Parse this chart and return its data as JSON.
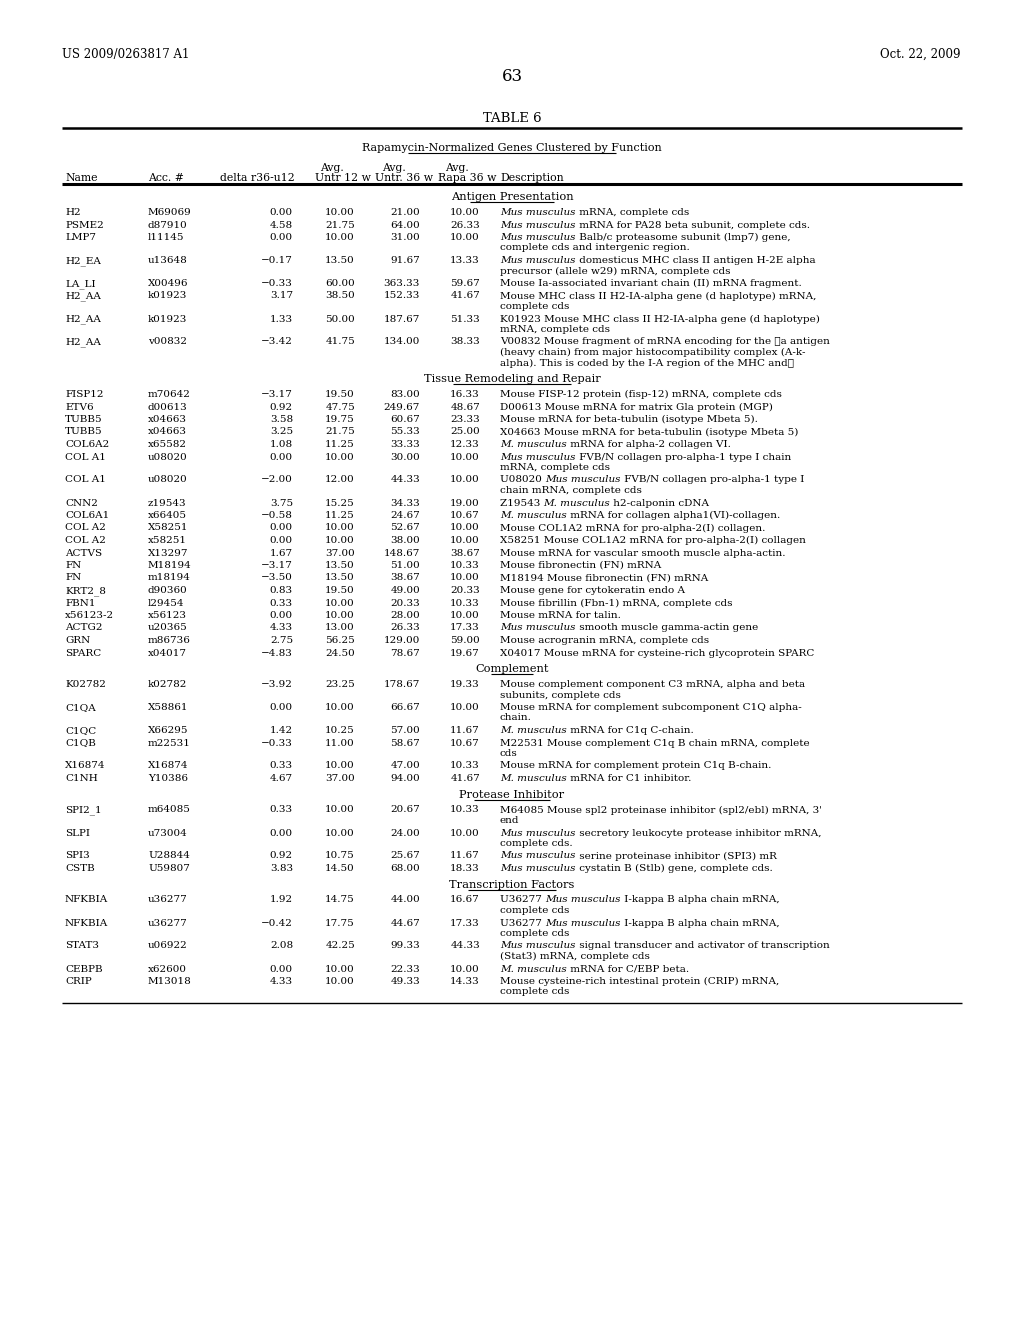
{
  "page_left": "US 2009/0263817 A1",
  "page_right": "Oct. 22, 2009",
  "page_number": "63",
  "table_title": "TABLE 6",
  "table_subtitle": "Rapamycin-Normalized Genes Clustered by Function",
  "sections": [
    {
      "name": "Antigen Presentation",
      "rows": [
        [
          "H2",
          "M69069",
          "0.00",
          "10.00",
          "21.00",
          "10.00",
          [
            [
              "italic",
              "Mus musculus"
            ],
            [
              "normal",
              " mRNA, complete cds"
            ]
          ]
        ],
        [
          "PSME2",
          "d87910",
          "4.58",
          "21.75",
          "64.00",
          "26.33",
          [
            [
              "italic",
              "Mus musculus"
            ],
            [
              "normal",
              " mRNA for PA28 beta subunit, complete cds."
            ]
          ]
        ],
        [
          "LMP7",
          "l11145",
          "0.00",
          "10.00",
          "31.00",
          "10.00",
          [
            [
              "italic",
              "Mus musculus"
            ],
            [
              "normal",
              " Balb/c proteasome subunit (lmp7) gene,\ncomplete cds and intergenic region."
            ]
          ]
        ],
        [
          "H2_EA",
          "u13648",
          "−0.17",
          "13.50",
          "91.67",
          "13.33",
          [
            [
              "italic",
              "Mus musculus"
            ],
            [
              "normal",
              " domesticus MHC class II antigen H-2E alpha\nprecursor (allele w29) mRNA, complete cds"
            ]
          ]
        ],
        [
          "LA_LI",
          "X00496",
          "−0.33",
          "60.00",
          "363.33",
          "59.67",
          [
            [
              "normal",
              "Mouse Ia-associated invariant chain (II) mRNA fragment."
            ]
          ]
        ],
        [
          "H2_AA",
          "k01923",
          "3.17",
          "38.50",
          "152.33",
          "41.67",
          [
            [
              "normal",
              "Mouse MHC class II H2-IA-alpha gene (d haplotype) mRNA,\ncomplete cds"
            ]
          ]
        ],
        [
          "H2_AA",
          "k01923",
          "1.33",
          "50.00",
          "187.67",
          "51.33",
          [
            [
              "normal",
              "K01923 Mouse MHC class II H2-IA-alpha gene (d haplotype)\nmRNA, complete cds"
            ]
          ]
        ],
        [
          "H2_AA",
          "v00832",
          "−3.42",
          "41.75",
          "134.00",
          "38.33",
          [
            [
              "normal",
              "V00832 Mouse fragment of mRNA encoding for the Ⓢa antigen\n(heavy chain) from major histocompatibility complex (A-k-\nalpha). This is coded by the I-A region of the MHC and②"
            ]
          ]
        ]
      ]
    },
    {
      "name": "Tissue Remodeling and Repair",
      "rows": [
        [
          "FISP12",
          "m70642",
          "−3.17",
          "19.50",
          "83.00",
          "16.33",
          [
            [
              "normal",
              "Mouse FISP-12 protein (fisp-12) mRNA, complete cds"
            ]
          ]
        ],
        [
          "ETV6",
          "d00613",
          "0.92",
          "47.75",
          "249.67",
          "48.67",
          [
            [
              "normal",
              "D00613 Mouse mRNA for matrix Gla protein (MGP)"
            ]
          ]
        ],
        [
          "TUBB5",
          "x04663",
          "3.58",
          "19.75",
          "60.67",
          "23.33",
          [
            [
              "normal",
              "Mouse mRNA for beta-tubulin (isotype Mbeta 5)."
            ]
          ]
        ],
        [
          "TUBB5",
          "x04663",
          "3.25",
          "21.75",
          "55.33",
          "25.00",
          [
            [
              "normal",
              "X04663 Mouse mRNA for beta-tubulin (isotype Mbeta 5)"
            ]
          ]
        ],
        [
          "COL6A2",
          "x65582",
          "1.08",
          "11.25",
          "33.33",
          "12.33",
          [
            [
              "italic",
              "M. musculus"
            ],
            [
              "normal",
              " mRNA for alpha-2 collagen VI."
            ]
          ]
        ],
        [
          "COL A1",
          "u08020",
          "0.00",
          "10.00",
          "30.00",
          "10.00",
          [
            [
              "italic",
              "Mus musculus"
            ],
            [
              "normal",
              " FVB/N collagen pro-alpha-1 type I chain\nmRNA, complete cds"
            ]
          ]
        ],
        [
          "COL A1",
          "u08020",
          "−2.00",
          "12.00",
          "44.33",
          "10.00",
          [
            [
              "normal",
              "U08020 "
            ],
            [
              "italic",
              "Mus musculus"
            ],
            [
              "normal",
              " FVB/N collagen pro-alpha-1 type I\nchain mRNA, complete cds"
            ]
          ]
        ],
        [
          "CNN2",
          "z19543",
          "3.75",
          "15.25",
          "34.33",
          "19.00",
          [
            [
              "normal",
              "Z19543 "
            ],
            [
              "italic",
              "M. musculus"
            ],
            [
              "normal",
              " h2-calponin cDNA"
            ]
          ]
        ],
        [
          "COL6A1",
          "x66405",
          "−0.58",
          "11.25",
          "24.67",
          "10.67",
          [
            [
              "italic",
              "M. musculus"
            ],
            [
              "normal",
              " mRNA for collagen alpha1(VI)-collagen."
            ]
          ]
        ],
        [
          "COL A2",
          "X58251",
          "0.00",
          "10.00",
          "52.67",
          "10.00",
          [
            [
              "normal",
              "Mouse COL1A2 mRNA for pro-alpha-2(I) collagen."
            ]
          ]
        ],
        [
          "COL A2",
          "x58251",
          "0.00",
          "10.00",
          "38.00",
          "10.00",
          [
            [
              "normal",
              "X58251 Mouse COL1A2 mRNA for pro-alpha-2(I) collagen"
            ]
          ]
        ],
        [
          "ACTVS",
          "X13297",
          "1.67",
          "37.00",
          "148.67",
          "38.67",
          [
            [
              "normal",
              "Mouse mRNA for vascular smooth muscle alpha-actin."
            ]
          ]
        ],
        [
          "FN",
          "M18194",
          "−3.17",
          "13.50",
          "51.00",
          "10.33",
          [
            [
              "normal",
              "Mouse fibronectin (FN) mRNA"
            ]
          ]
        ],
        [
          "FN",
          "m18194",
          "−3.50",
          "13.50",
          "38.67",
          "10.00",
          [
            [
              "normal",
              "M18194 Mouse fibronectin (FN) mRNA"
            ]
          ]
        ],
        [
          "KRT2_8",
          "d90360",
          "0.83",
          "19.50",
          "49.00",
          "20.33",
          [
            [
              "normal",
              "Mouse gene for cytokeratin endo A"
            ]
          ]
        ],
        [
          "FBN1",
          "l29454",
          "0.33",
          "10.00",
          "20.33",
          "10.33",
          [
            [
              "normal",
              "Mouse fibrillin (Fbn-1) mRNA, complete cds"
            ]
          ]
        ],
        [
          "x56123-2",
          "x56123",
          "0.00",
          "10.00",
          "28.00",
          "10.00",
          [
            [
              "normal",
              "Mouse mRNA for talin."
            ]
          ]
        ],
        [
          "ACTG2",
          "u20365",
          "4.33",
          "13.00",
          "26.33",
          "17.33",
          [
            [
              "italic",
              "Mus musculus"
            ],
            [
              "normal",
              " smooth muscle gamma-actin gene"
            ]
          ]
        ],
        [
          "GRN",
          "m86736",
          "2.75",
          "56.25",
          "129.00",
          "59.00",
          [
            [
              "normal",
              "Mouse acrogranin mRNA, complete cds"
            ]
          ]
        ],
        [
          "SPARC",
          "x04017",
          "−4.83",
          "24.50",
          "78.67",
          "19.67",
          [
            [
              "normal",
              "X04017 Mouse mRNA for cysteine-rich glycoprotein SPARC"
            ]
          ]
        ]
      ]
    },
    {
      "name": "Complement",
      "rows": [
        [
          "K02782",
          "k02782",
          "−3.92",
          "23.25",
          "178.67",
          "19.33",
          [
            [
              "normal",
              "Mouse complement component C3 mRNA, alpha and beta\nsubunits, complete cds"
            ]
          ]
        ],
        [
          "C1QA",
          "X58861",
          "0.00",
          "10.00",
          "66.67",
          "10.00",
          [
            [
              "normal",
              "Mouse mRNA for complement subcomponent C1Q alpha-\nchain."
            ]
          ]
        ],
        [
          "C1QC",
          "X66295",
          "1.42",
          "10.25",
          "57.00",
          "11.67",
          [
            [
              "italic",
              "M. musculus"
            ],
            [
              "normal",
              " mRNA for C1q C-chain."
            ]
          ]
        ],
        [
          "C1QB",
          "m22531",
          "−0.33",
          "11.00",
          "58.67",
          "10.67",
          [
            [
              "normal",
              "M22531 Mouse complement C1q B chain mRNA, complete\ncds"
            ]
          ]
        ],
        [
          "X16874",
          "X16874",
          "0.33",
          "10.00",
          "47.00",
          "10.33",
          [
            [
              "normal",
              "Mouse mRNA for complement protein C1q B-chain."
            ]
          ]
        ],
        [
          "C1NH",
          "Y10386",
          "4.67",
          "37.00",
          "94.00",
          "41.67",
          [
            [
              "italic",
              "M. musculus"
            ],
            [
              "normal",
              " mRNA for C1 inhibitor."
            ]
          ]
        ]
      ]
    },
    {
      "name": "Protease Inhibitor",
      "rows": [
        [
          "SPI2_1",
          "m64085",
          "0.33",
          "10.00",
          "20.67",
          "10.33",
          [
            [
              "normal",
              "M64085 Mouse spl2 proteinase inhibitor (spl2/ebl) mRNA, 3'\nend"
            ]
          ]
        ],
        [
          "SLPI",
          "u73004",
          "0.00",
          "10.00",
          "24.00",
          "10.00",
          [
            [
              "italic",
              "Mus musculus"
            ],
            [
              "normal",
              " secretory leukocyte protease inhibitor mRNA,\ncomplete cds."
            ]
          ]
        ],
        [
          "SPI3",
          "U28844",
          "0.92",
          "10.75",
          "25.67",
          "11.67",
          [
            [
              "italic",
              "Mus musculus"
            ],
            [
              "normal",
              " serine proteinase inhibitor (SPI3) mR"
            ]
          ]
        ],
        [
          "CSTB",
          "U59807",
          "3.83",
          "14.50",
          "68.00",
          "18.33",
          [
            [
              "italic",
              "Mus musculus"
            ],
            [
              "normal",
              " cystatin B (Stlb) gene, complete cds."
            ]
          ]
        ]
      ]
    },
    {
      "name": "Transcription Factors",
      "rows": [
        [
          "NFKBIA",
          "u36277",
          "1.92",
          "14.75",
          "44.00",
          "16.67",
          [
            [
              "normal",
              "U36277 "
            ],
            [
              "italic",
              "Mus musculus"
            ],
            [
              "normal",
              " I-kappa B alpha chain mRNA,\ncomplete cds"
            ]
          ]
        ],
        [
          "NFKBIA",
          "u36277",
          "−0.42",
          "17.75",
          "44.67",
          "17.33",
          [
            [
              "normal",
              "U36277 "
            ],
            [
              "italic",
              "Mus musculus"
            ],
            [
              "normal",
              " I-kappa B alpha chain mRNA,\ncomplete cds"
            ]
          ]
        ],
        [
          "STAT3",
          "u06922",
          "2.08",
          "42.25",
          "99.33",
          "44.33",
          [
            [
              "italic",
              "Mus musculus"
            ],
            [
              "normal",
              " signal transducer and activator of transcription\n(Stat3) mRNA, complete cds"
            ]
          ]
        ],
        [
          "CEBPB",
          "x62600",
          "0.00",
          "10.00",
          "22.33",
          "10.00",
          [
            [
              "italic",
              "M. musculus"
            ],
            [
              "normal",
              " mRNA for C/EBP beta."
            ]
          ]
        ],
        [
          "CRIP",
          "M13018",
          "4.33",
          "10.00",
          "49.33",
          "14.33",
          [
            [
              "normal",
              "Mouse cysteine-rich intestinal protein (CRIP) mRNA,\ncomplete cds"
            ]
          ]
        ]
      ]
    }
  ]
}
